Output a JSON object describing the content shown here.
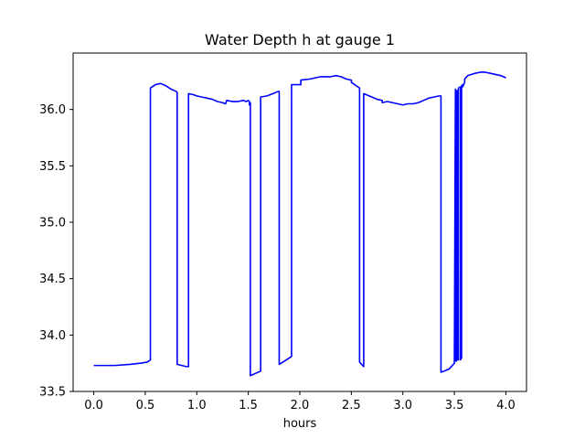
{
  "chart_data": {
    "type": "line",
    "title": "Water Depth h at gauge 1",
    "xlabel": "hours",
    "ylabel": "",
    "xlim": [
      -0.2,
      4.2
    ],
    "ylim": [
      33.5,
      36.5
    ],
    "xticks": [
      0.0,
      0.5,
      1.0,
      1.5,
      2.0,
      2.5,
      3.0,
      3.5,
      4.0
    ],
    "xtick_labels": [
      "0.0",
      "0.5",
      "1.0",
      "1.5",
      "2.0",
      "2.5",
      "3.0",
      "3.5",
      "4.0"
    ],
    "yticks": [
      33.5,
      34.0,
      34.5,
      35.0,
      35.5,
      36.0
    ],
    "ytick_labels": [
      "33.5",
      "34.0",
      "34.5",
      "35.0",
      "35.5",
      "36.0"
    ],
    "grid": false,
    "series": [
      {
        "color": "#0000ff",
        "x": [
          0.0,
          0.2,
          0.35,
          0.45,
          0.52,
          0.55,
          0.55,
          0.6,
          0.65,
          0.7,
          0.75,
          0.8,
          0.81,
          0.81,
          0.9,
          0.92,
          0.92,
          0.97,
          1.0,
          1.05,
          1.1,
          1.15,
          1.2,
          1.25,
          1.28,
          1.29,
          1.35,
          1.4,
          1.45,
          1.48,
          1.5,
          1.51,
          1.51,
          1.52,
          1.52,
          1.62,
          1.62,
          1.68,
          1.74,
          1.79,
          1.8,
          1.8,
          1.92,
          1.92,
          2.0,
          2.01,
          2.01,
          2.1,
          2.2,
          2.3,
          2.35,
          2.4,
          2.45,
          2.5,
          2.5,
          2.58,
          2.58,
          2.62,
          2.62,
          2.7,
          2.75,
          2.8,
          2.8,
          2.85,
          2.9,
          2.95,
          3.0,
          3.05,
          3.1,
          3.15,
          3.2,
          3.25,
          3.3,
          3.35,
          3.37,
          3.37,
          3.4,
          3.45,
          3.5,
          3.5,
          3.51,
          3.51,
          3.52,
          3.52,
          3.53,
          3.53,
          3.54,
          3.54,
          3.56,
          3.56,
          3.57,
          3.57,
          3.58,
          3.58,
          3.59,
          3.59,
          3.6,
          3.6,
          3.63,
          3.7,
          3.75,
          3.8,
          3.85,
          3.9,
          3.95,
          4.0
        ],
        "y": [
          33.73,
          33.73,
          33.74,
          33.75,
          33.76,
          33.78,
          36.19,
          36.22,
          36.23,
          36.21,
          36.18,
          36.16,
          36.15,
          33.74,
          33.72,
          33.72,
          36.14,
          36.13,
          36.12,
          36.11,
          36.1,
          36.09,
          36.07,
          36.06,
          36.05,
          36.08,
          36.07,
          36.07,
          36.08,
          36.07,
          36.08,
          36.07,
          36.04,
          36.06,
          33.64,
          33.68,
          36.11,
          36.12,
          36.14,
          36.16,
          36.16,
          33.74,
          33.81,
          36.22,
          36.22,
          36.22,
          36.26,
          36.27,
          36.29,
          36.29,
          36.3,
          36.29,
          36.27,
          36.26,
          36.24,
          36.19,
          33.76,
          33.72,
          36.14,
          36.11,
          36.09,
          36.08,
          36.06,
          36.07,
          36.06,
          36.05,
          36.04,
          36.05,
          36.05,
          36.06,
          36.08,
          36.1,
          36.11,
          36.12,
          36.12,
          33.67,
          33.68,
          33.7,
          33.75,
          33.77,
          36.18,
          33.77,
          33.77,
          36.16,
          36.17,
          33.78,
          33.78,
          36.19,
          36.2,
          33.78,
          33.8,
          36.21,
          36.22,
          36.2,
          36.22,
          36.22,
          36.24,
          36.27,
          36.3,
          36.32,
          36.33,
          36.33,
          36.32,
          36.31,
          36.3,
          36.28
        ]
      }
    ]
  }
}
